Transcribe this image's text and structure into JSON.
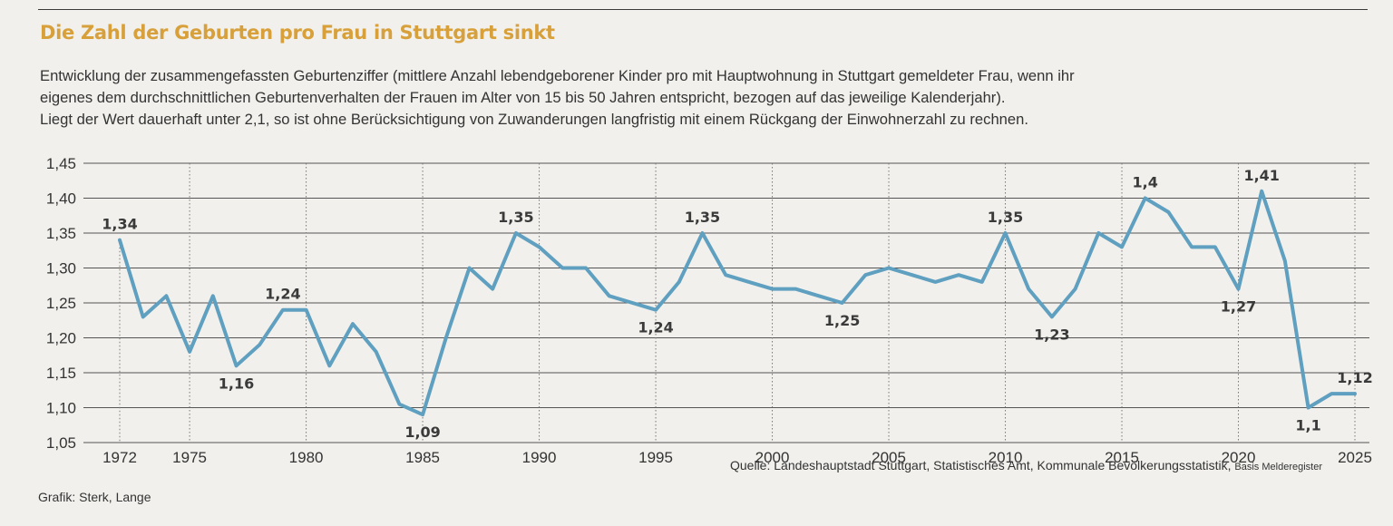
{
  "chart_data": {
    "type": "line",
    "title": "Die Zahl der Geburten pro Frau in Stuttgart sinkt",
    "subtitle": [
      "Entwicklung der zusammengefassten Geburtenziffer (mittlere Anzahl lebendgeborener Kinder pro mit Hauptwohnung in Stuttgart gemeldeter Frau, wenn ihr",
      "eigenes dem durchschnittlichen Geburtenverhalten der Frauen im Alter von 15 bis 50 Jahren entspricht, bezogen auf das jeweilige Kalenderjahr).",
      "Liegt der Wert dauerhaft unter 2,1, so ist ohne Berücksichtigung von Zuwanderungen langfristig mit einem Rückgang der Einwohnerzahl zu rechnen."
    ],
    "xlabel": "",
    "ylabel": "",
    "xlim": [
      1972,
      2025
    ],
    "ylim": [
      1.05,
      1.45
    ],
    "y_ticks": [
      1.05,
      1.1,
      1.15,
      1.2,
      1.25,
      1.3,
      1.35,
      1.4,
      1.45
    ],
    "y_tick_labels": [
      "1,05",
      "1,10",
      "1,15",
      "1,20",
      "1,25",
      "1,30",
      "1,35",
      "1,40",
      "1,45"
    ],
    "x_ticks": [
      1972,
      1975,
      1980,
      1985,
      1990,
      1995,
      2000,
      2005,
      2010,
      2015,
      2020,
      2025
    ],
    "x_tick_labels": [
      "1972",
      "1975",
      "1980",
      "1985",
      "1990",
      "1995",
      "2000",
      "2005",
      "2010",
      "2015",
      "2020",
      "2025"
    ],
    "grid": true,
    "line_color": "#5f9fc0",
    "series": [
      {
        "x": [
          1972,
          1973,
          1974,
          1975,
          1976,
          1977,
          1978,
          1979,
          1980,
          1981,
          1982,
          1983,
          1984,
          1985,
          1986,
          1987,
          1988,
          1989,
          1990,
          1991,
          1992,
          1993,
          1994,
          1995,
          1996,
          1997,
          1998,
          1999,
          2000,
          2001,
          2002,
          2003,
          2004,
          2005,
          2006,
          2007,
          2008,
          2009,
          2010,
          2011,
          2012,
          2013,
          2014,
          2015,
          2016,
          2017,
          2018,
          2019,
          2020,
          2021,
          2022,
          2023,
          2024,
          2025
        ],
        "y": [
          1.34,
          1.23,
          1.26,
          1.18,
          1.26,
          1.16,
          1.19,
          1.24,
          1.24,
          1.16,
          1.22,
          1.18,
          1.105,
          1.09,
          1.2,
          1.3,
          1.27,
          1.35,
          1.33,
          1.3,
          1.3,
          1.26,
          1.25,
          1.24,
          1.28,
          1.35,
          1.29,
          1.28,
          1.27,
          1.27,
          1.26,
          1.25,
          1.29,
          1.3,
          1.29,
          1.28,
          1.29,
          1.28,
          1.35,
          1.27,
          1.23,
          1.27,
          1.35,
          1.33,
          1.4,
          1.38,
          1.33,
          1.33,
          1.27,
          1.41,
          1.31,
          1.1,
          1.12,
          1.12
        ]
      }
    ],
    "annotations": [
      {
        "x": 1972,
        "y": 1.34,
        "text": "1,34",
        "pos": "above"
      },
      {
        "x": 1977,
        "y": 1.16,
        "text": "1,16",
        "pos": "below"
      },
      {
        "x": 1979,
        "y": 1.24,
        "text": "1,24",
        "pos": "above"
      },
      {
        "x": 1985,
        "y": 1.09,
        "text": "1,09",
        "pos": "below"
      },
      {
        "x": 1989,
        "y": 1.35,
        "text": "1,35",
        "pos": "above"
      },
      {
        "x": 1995,
        "y": 1.24,
        "text": "1,24",
        "pos": "below"
      },
      {
        "x": 1997,
        "y": 1.35,
        "text": "1,35",
        "pos": "above"
      },
      {
        "x": 2003,
        "y": 1.25,
        "text": "1,25",
        "pos": "below"
      },
      {
        "x": 2010,
        "y": 1.35,
        "text": "1,35",
        "pos": "above"
      },
      {
        "x": 2012,
        "y": 1.23,
        "text": "1,23",
        "pos": "below"
      },
      {
        "x": 2016,
        "y": 1.4,
        "text": "1,4",
        "pos": "above"
      },
      {
        "x": 2021,
        "y": 1.41,
        "text": "1,41",
        "pos": "above"
      },
      {
        "x": 2020,
        "y": 1.27,
        "text": "1,27",
        "pos": "below"
      },
      {
        "x": 2023,
        "y": 1.1,
        "text": "1,1",
        "pos": "below"
      },
      {
        "x": 2025,
        "y": 1.12,
        "text": "1,12",
        "pos": "above"
      }
    ]
  },
  "footer": {
    "credit": "Grafik: Sterk, Lange",
    "source_main": "Quelle: Landeshauptstadt Stuttgart, Statistisches Amt, Kommunale Bevölkerungsstatistik, ",
    "source_small": "Basis Melderegister"
  }
}
